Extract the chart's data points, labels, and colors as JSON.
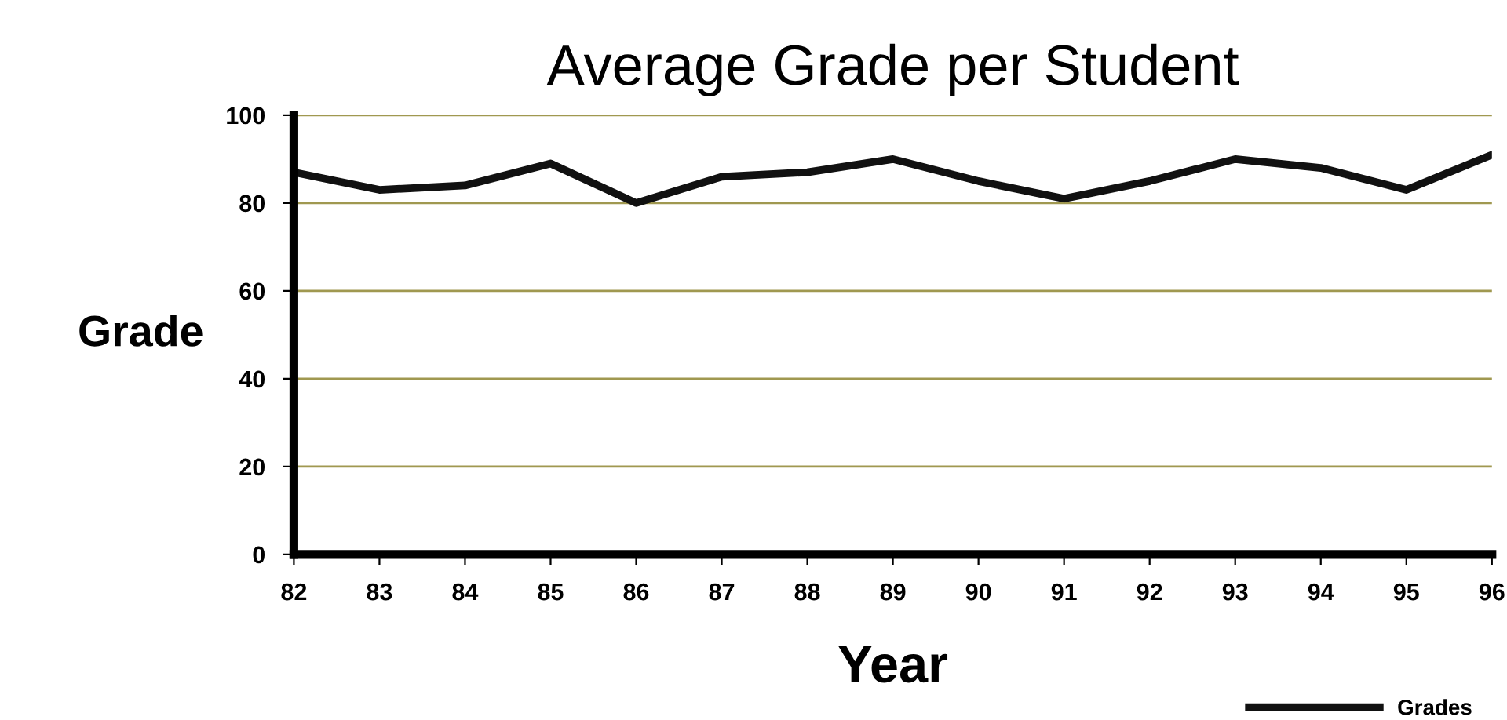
{
  "chart_data": {
    "type": "line",
    "title": "Average Grade per Student",
    "xlabel": "Year",
    "ylabel": "Grade",
    "x": [
      82,
      83,
      84,
      85,
      86,
      87,
      88,
      89,
      90,
      91,
      92,
      93,
      94,
      95,
      96
    ],
    "series": [
      {
        "name": "Grades",
        "color": "#111111",
        "values": [
          87,
          83,
          84,
          89,
          80,
          86,
          87,
          90,
          85,
          81,
          85,
          90,
          88,
          83,
          91
        ]
      }
    ],
    "xlim": [
      82,
      96
    ],
    "xticks": [
      82,
      83,
      84,
      85,
      86,
      87,
      88,
      89,
      90,
      91,
      92,
      93,
      94,
      95,
      96
    ],
    "ylim": [
      0,
      100
    ],
    "yticks": [
      0,
      20,
      40,
      60,
      80,
      100
    ],
    "grid": "y",
    "legend": "bottom right",
    "marker": "none",
    "line_style": "solid"
  }
}
